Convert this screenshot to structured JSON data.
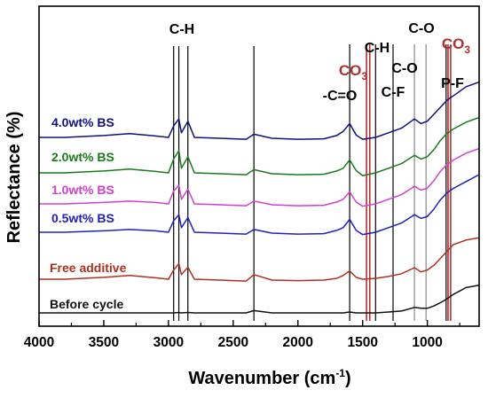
{
  "chart_data": {
    "type": "line",
    "title": "",
    "xlabel": "Wavenumber (cm",
    "xlabel_sup": "-1",
    "xlabel_close": ")",
    "ylabel": "Reflectance (%)",
    "xlim": [
      4000,
      600
    ],
    "x_reversed": true,
    "y_ticks_shown": false,
    "grid": false,
    "x_ticks": [
      4000,
      3500,
      3000,
      2500,
      2000,
      1500,
      1000
    ],
    "x_tick_labels": [
      "4000",
      "3500",
      "3000",
      "2500",
      "2000",
      "1500",
      "1000"
    ],
    "annotations": [
      {
        "label": "C-H",
        "x": 2950,
        "color": "#000000"
      },
      {
        "label": "-C=O",
        "x": 1600,
        "color": "#000000"
      },
      {
        "label": "CO",
        "sub": "3",
        "x": 1465,
        "color": "#b03030"
      },
      {
        "label": "C-H",
        "x": 1400,
        "color": "#000000"
      },
      {
        "label": "C-F",
        "x": 1265,
        "color": "#000000"
      },
      {
        "label": "C-O",
        "x": 1100,
        "color": "#000000"
      },
      {
        "label": "C-O",
        "x": 1010,
        "color": "#000000"
      },
      {
        "label": "CO",
        "sub": "3",
        "x": 840,
        "color": "#b03030"
      },
      {
        "label": "P-F",
        "x": 800,
        "color": "#000000"
      }
    ],
    "marker_lines": [
      {
        "x": 2960,
        "color": "#000000"
      },
      {
        "x": 2920,
        "color": "#000000"
      },
      {
        "x": 2850,
        "color": "#000000"
      },
      {
        "x": 2340,
        "color": "#000000"
      },
      {
        "x": 1600,
        "color": "#000000"
      },
      {
        "x": 1470,
        "color": "#b03030"
      },
      {
        "x": 1445,
        "color": "#b03030"
      },
      {
        "x": 1400,
        "color": "#000000"
      },
      {
        "x": 1265,
        "color": "#000000"
      },
      {
        "x": 1100,
        "color": "#888888"
      },
      {
        "x": 1010,
        "color": "#888888"
      },
      {
        "x": 855,
        "color": "#000000"
      },
      {
        "x": 840,
        "color": "#b03030"
      },
      {
        "x": 820,
        "color": "#b03030"
      }
    ],
    "series": [
      {
        "name": "4.0wt% BS",
        "color": "#101080",
        "offset": 0,
        "x": [
          4000,
          3800,
          3500,
          3300,
          3100,
          3000,
          2960,
          2920,
          2900,
          2850,
          2800,
          2600,
          2400,
          2340,
          2200,
          2000,
          1800,
          1700,
          1650,
          1600,
          1550,
          1500,
          1400,
          1300,
          1200,
          1100,
          1050,
          1000,
          950,
          900,
          850,
          800,
          700,
          600
        ],
        "y": [
          0.0,
          0.0,
          0.4,
          0.8,
          0.3,
          0.0,
          2.5,
          4.0,
          1.0,
          3.5,
          0.0,
          -0.2,
          -0.4,
          0.7,
          -0.2,
          -0.4,
          -0.3,
          0.4,
          1.3,
          3.0,
          0.5,
          -0.4,
          0.0,
          1.0,
          2.0,
          4.0,
          3.0,
          3.5,
          5.0,
          6.5,
          8.0,
          9.0,
          11.0,
          12.0
        ]
      },
      {
        "name": "2.0wt% BS",
        "color": "#1a7a1a",
        "offset": 40,
        "x": [
          4000,
          3800,
          3500,
          3300,
          3100,
          3000,
          2960,
          2920,
          2900,
          2850,
          2800,
          2600,
          2400,
          2340,
          2200,
          2000,
          1800,
          1700,
          1650,
          1600,
          1550,
          1500,
          1400,
          1300,
          1200,
          1100,
          1050,
          1000,
          950,
          900,
          850,
          800,
          700,
          600
        ],
        "y": [
          0.0,
          0.0,
          0.4,
          0.8,
          0.3,
          0.0,
          3.0,
          4.8,
          1.0,
          3.5,
          0.0,
          -0.2,
          -0.4,
          0.7,
          -0.2,
          -0.4,
          -0.3,
          0.4,
          1.0,
          2.8,
          0.5,
          -0.6,
          0.0,
          1.0,
          2.0,
          3.8,
          3.0,
          3.5,
          5.0,
          7.0,
          8.5,
          9.5,
          11.0,
          12.0
        ]
      },
      {
        "name": "1.0wt% BS",
        "color": "#d040d0",
        "offset": 75,
        "x": [
          4000,
          3800,
          3500,
          3300,
          3100,
          3000,
          2960,
          2920,
          2900,
          2850,
          2800,
          2600,
          2400,
          2340,
          2200,
          2000,
          1800,
          1700,
          1650,
          1600,
          1550,
          1500,
          1400,
          1300,
          1200,
          1100,
          1050,
          1000,
          950,
          900,
          850,
          800,
          700,
          600
        ],
        "y": [
          0.0,
          0.0,
          0.3,
          0.6,
          0.3,
          0.0,
          2.8,
          4.0,
          1.0,
          3.2,
          0.0,
          -0.2,
          -0.4,
          0.6,
          -0.2,
          -0.4,
          -0.3,
          0.4,
          1.0,
          2.6,
          0.4,
          -0.5,
          0.0,
          1.0,
          2.0,
          3.8,
          3.0,
          3.4,
          5.0,
          7.0,
          8.5,
          9.5,
          11.0,
          12.0
        ]
      },
      {
        "name": "0.5wt% BS",
        "color": "#2020c0",
        "offset": 107,
        "x": [
          4000,
          3800,
          3500,
          3300,
          3100,
          3000,
          2960,
          2920,
          2900,
          2850,
          2800,
          2600,
          2400,
          2340,
          2200,
          2000,
          1800,
          1700,
          1650,
          1600,
          1550,
          1500,
          1400,
          1300,
          1200,
          1100,
          1050,
          1000,
          950,
          900,
          850,
          800,
          700,
          600
        ],
        "y": [
          0.0,
          0.0,
          0.3,
          0.6,
          0.3,
          0.0,
          2.5,
          3.8,
          1.0,
          3.2,
          0.0,
          -0.2,
          -0.4,
          0.6,
          -0.2,
          -0.4,
          -0.3,
          0.4,
          1.0,
          2.8,
          0.4,
          -0.5,
          0.0,
          1.0,
          2.0,
          3.8,
          3.0,
          3.4,
          5.0,
          7.0,
          8.5,
          9.5,
          11.0,
          12.5
        ]
      },
      {
        "name": "Free additive",
        "color": "#b03020",
        "offset": 160,
        "x": [
          4000,
          3800,
          3500,
          3300,
          3100,
          3000,
          2960,
          2920,
          2900,
          2850,
          2800,
          2600,
          2400,
          2340,
          2200,
          2000,
          1800,
          1700,
          1650,
          1600,
          1550,
          1500,
          1400,
          1300,
          1200,
          1100,
          1050,
          1000,
          950,
          900,
          850,
          800,
          700,
          600
        ],
        "y": [
          0.0,
          0.0,
          0.4,
          0.8,
          0.3,
          0.0,
          2.0,
          3.4,
          1.0,
          2.6,
          0.0,
          -0.2,
          -0.4,
          1.0,
          -0.2,
          -0.3,
          -0.2,
          0.2,
          0.8,
          1.8,
          0.4,
          0.0,
          0.2,
          0.6,
          1.2,
          2.5,
          1.6,
          2.0,
          3.0,
          4.5,
          6.0,
          7.5,
          8.5,
          9.0
        ]
      },
      {
        "name": "Before cycle",
        "color": "#111111",
        "offset": 198,
        "x": [
          4000,
          3800,
          3500,
          3300,
          3100,
          3000,
          2960,
          2920,
          2900,
          2850,
          2800,
          2600,
          2400,
          2340,
          2200,
          2000,
          1800,
          1700,
          1650,
          1600,
          1550,
          1500,
          1400,
          1300,
          1200,
          1100,
          1050,
          1000,
          950,
          900,
          850,
          800,
          700,
          600
        ],
        "y": [
          0.0,
          0.0,
          0.0,
          0.0,
          0.0,
          0.0,
          0.0,
          0.1,
          0.0,
          0.1,
          0.0,
          0.0,
          0.0,
          0.5,
          0.0,
          0.0,
          0.0,
          0.0,
          0.0,
          0.2,
          0.0,
          0.0,
          0.0,
          0.2,
          0.4,
          1.2,
          1.0,
          1.0,
          1.5,
          2.2,
          3.0,
          4.0,
          5.5,
          6.0
        ]
      }
    ]
  }
}
